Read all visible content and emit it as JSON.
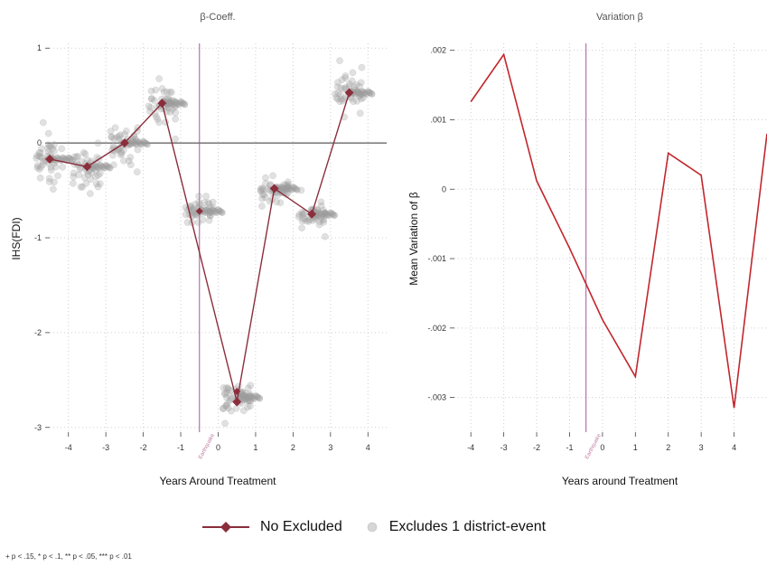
{
  "legend": {
    "no_excluded": "No Excluded",
    "excludes": "Excludes 1 district-event"
  },
  "note": "+ p < .15, * p < .1, ** p < .05, *** p < .01",
  "colors": {
    "no_excluded": "#8B2E3C",
    "excludes": "#a3a3a3",
    "variation": "#C1272D",
    "event_line": "#a05a9a"
  },
  "chart_data": [
    {
      "type": "scatter",
      "title": "β-Coeff.",
      "xlabel": "Years Around Treatment",
      "ylabel": "IHS(FDI)",
      "xlim": [
        -4.5,
        4.5
      ],
      "ylim": [
        -3.05,
        1.05
      ],
      "xticks": [
        -4,
        -3,
        -2,
        -1,
        0,
        1,
        2,
        3,
        4
      ],
      "yticks": [
        -3,
        -2,
        -1,
        0,
        1
      ],
      "grid": true,
      "reference_line_y": 0,
      "event_line": {
        "x": -0.5,
        "label": "Earthquake"
      },
      "series": [
        {
          "name": "No Excluded",
          "style": "line-diamond",
          "x": [
            -4.5,
            -3.5,
            -2.5,
            -1.5,
            0.5,
            1.5,
            2.5,
            3.5
          ],
          "y": [
            -0.17,
            -0.25,
            0.0,
            0.42,
            -2.73,
            -0.48,
            -0.75,
            0.53
          ],
          "extra_points": [
            {
              "x": -0.5,
              "y": -0.72
            },
            {
              "x": 0.5,
              "y": -2.62
            }
          ]
        },
        {
          "name": "Excludes 1 district-event",
          "style": "scatter-circle",
          "clusters": [
            {
              "x": -4.5,
              "center": -0.17,
              "spread": 0.22,
              "n": 45
            },
            {
              "x": -3.5,
              "center": -0.25,
              "spread": 0.2,
              "n": 45
            },
            {
              "x": -2.5,
              "center": 0.0,
              "spread": 0.22,
              "n": 45
            },
            {
              "x": -1.5,
              "center": 0.42,
              "spread": 0.2,
              "n": 45
            },
            {
              "x": -0.5,
              "center": -0.72,
              "spread": 0.12,
              "n": 45
            },
            {
              "x": 0.5,
              "center": -2.68,
              "spread": 0.15,
              "n": 55
            },
            {
              "x": 1.5,
              "center": -0.48,
              "spread": 0.12,
              "n": 45
            },
            {
              "x": 2.5,
              "center": -0.75,
              "spread": 0.14,
              "n": 45
            },
            {
              "x": 3.5,
              "center": 0.53,
              "spread": 0.18,
              "n": 45
            }
          ]
        }
      ]
    },
    {
      "type": "line",
      "title": "Variation β",
      "xlabel": "Years around Treatment",
      "ylabel": "Mean Variation of β",
      "xlim": [
        -4,
        5
      ],
      "ylim": [
        -0.0035,
        0.0021
      ],
      "xticks": [
        -4,
        -3,
        -2,
        -1,
        0,
        1,
        2,
        3,
        4
      ],
      "yticks": [
        -0.003,
        -0.002,
        -0.001,
        0,
        0.001,
        0.002
      ],
      "ytick_labels": [
        "-.003",
        "-.002",
        "-.001",
        "0",
        ".001",
        ".002"
      ],
      "grid": true,
      "event_line": {
        "x": -0.5,
        "label": "Earthquake"
      },
      "series": [
        {
          "name": "",
          "x": [
            -4,
            -3,
            -2,
            -1,
            0,
            1,
            2,
            3,
            4,
            5
          ],
          "y": [
            0.00126,
            0.00194,
            0.00012,
            -0.00085,
            -0.00188,
            -0.0027,
            0.00052,
            0.0002,
            -0.00315,
            0.0008
          ]
        }
      ]
    }
  ]
}
